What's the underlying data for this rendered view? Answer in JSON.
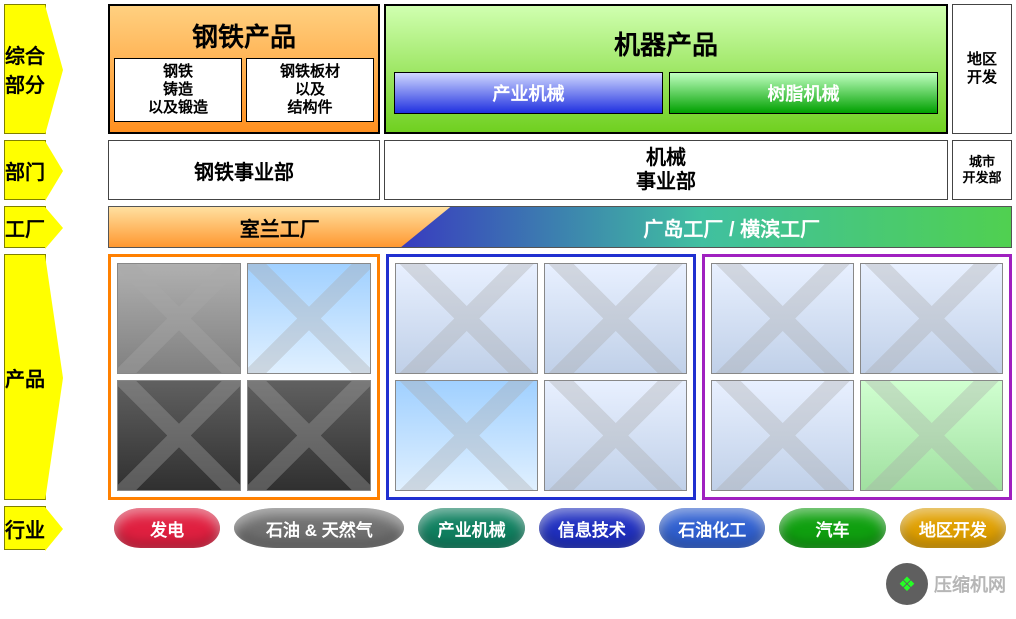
{
  "labels": {
    "综合部分": "综合\n部分",
    "部门": "部门",
    "工厂": "工厂",
    "产品": "产品",
    "行业": "行业"
  },
  "headers": {
    "steel_title": "钢铁产品",
    "machine_title": "机器产品",
    "region_dev": "地区\n开发"
  },
  "steel_sub": {
    "left": "钢铁\n铸造\n以及锻造",
    "right": "钢铁板材\n以及\n结构件"
  },
  "machine_sub": {
    "left": "产业机械",
    "right": "树脂机械"
  },
  "departments": {
    "steel": "钢铁事业部",
    "machine_l1": "机械",
    "machine_l2": "事业部",
    "city": "城市\n开发部"
  },
  "factories": {
    "left": "室兰工厂",
    "right": "广岛工厂 / 横滨工厂"
  },
  "industries": [
    {
      "label": "发电",
      "color": "#e02040"
    },
    {
      "label": "石油 & 天然气",
      "color": "#707070",
      "wide": true
    },
    {
      "label": "产业机械",
      "color": "#108060"
    },
    {
      "label": "信息技术",
      "color": "#2030c0"
    },
    {
      "label": "石油化工",
      "color": "#3060d0"
    },
    {
      "label": "汽车",
      "color": "#10a010"
    },
    {
      "label": "地区开发",
      "color": "#e0a000"
    }
  ],
  "watermark": "压缩机网",
  "colors": {
    "yellow": "#ffff00",
    "orange_grad_top": "#ffd080",
    "orange_grad_bot": "#ff9020",
    "green_grad_top": "#d0ffb0",
    "green_grad_bot": "#70d020",
    "blue_grad_top": "#d0d8ff",
    "blue_grad_bot": "#2030e0",
    "green2_top": "#c0ffc0",
    "green2_bot": "#00a000",
    "border_orange": "#ff8000",
    "border_blue": "#2030d0",
    "border_purple": "#a020c0"
  }
}
